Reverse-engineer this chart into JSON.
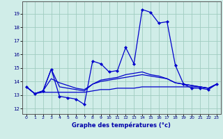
{
  "title": "Graphe des températures (°c)",
  "bg_color": "#d0ede8",
  "grid_color": "#a0ccc0",
  "line_color": "#0000cc",
  "axis_color": "#555555",
  "x_ticks": [
    0,
    1,
    2,
    3,
    4,
    5,
    6,
    7,
    8,
    9,
    10,
    11,
    12,
    13,
    14,
    15,
    16,
    17,
    18,
    19,
    20,
    21,
    22,
    23
  ],
  "y_ticks": [
    12,
    13,
    14,
    15,
    16,
    17,
    18,
    19
  ],
  "ylim": [
    11.6,
    19.9
  ],
  "xlim": [
    -0.5,
    23.5
  ],
  "series": [
    {
      "y": [
        13.6,
        13.1,
        13.3,
        14.9,
        12.9,
        12.8,
        12.7,
        12.3,
        15.5,
        15.3,
        14.7,
        14.8,
        16.5,
        15.3,
        19.3,
        19.1,
        18.3,
        18.4,
        15.2,
        13.8,
        13.5,
        13.5,
        13.4,
        13.8
      ],
      "marker": true
    },
    {
      "y": [
        13.6,
        13.1,
        13.3,
        14.9,
        13.6,
        13.5,
        13.4,
        13.3,
        13.8,
        14.1,
        14.2,
        14.3,
        14.5,
        14.6,
        14.7,
        14.5,
        14.4,
        14.2,
        13.9,
        13.8,
        13.7,
        13.6,
        13.5,
        13.8
      ],
      "marker": false
    },
    {
      "y": [
        13.6,
        13.1,
        13.2,
        13.2,
        13.2,
        13.2,
        13.2,
        13.2,
        13.3,
        13.4,
        13.4,
        13.5,
        13.5,
        13.5,
        13.6,
        13.6,
        13.6,
        13.6,
        13.6,
        13.6,
        13.6,
        13.6,
        13.5,
        13.8
      ],
      "marker": false
    },
    {
      "y": [
        13.6,
        13.1,
        13.3,
        14.2,
        13.9,
        13.7,
        13.5,
        13.4,
        13.8,
        14.0,
        14.1,
        14.2,
        14.3,
        14.4,
        14.5,
        14.4,
        14.3,
        14.2,
        13.9,
        13.8,
        13.7,
        13.6,
        13.5,
        13.8
      ],
      "marker": false
    }
  ]
}
